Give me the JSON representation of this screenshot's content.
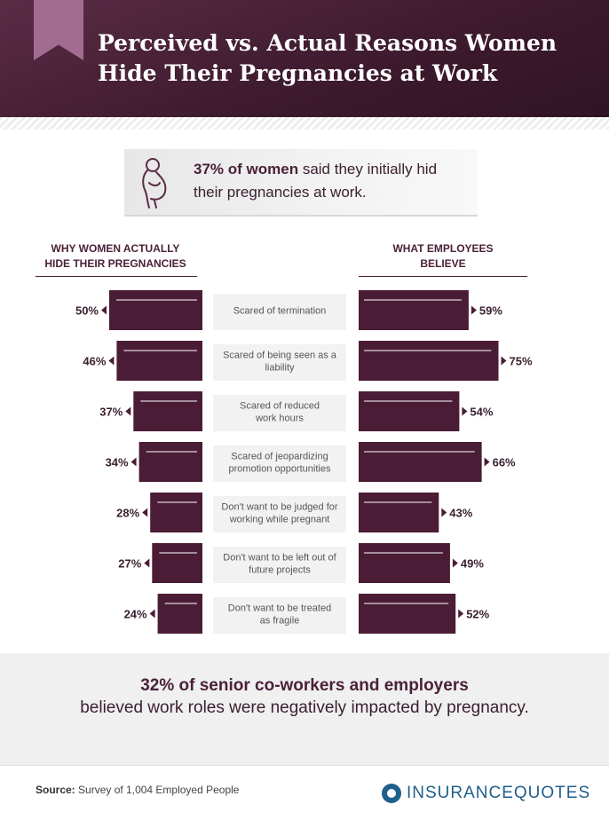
{
  "header": {
    "title_line1": "Perceived vs. Actual Reasons Women",
    "title_line2": "Hide Their Pregnancies at Work"
  },
  "stat": {
    "highlight": "37% of women",
    "text": "said they initially hid their pregnancies at work."
  },
  "chart_data": {
    "type": "bar",
    "left_header": [
      "WHY WOMEN ACTUALLY",
      "HIDE THEIR PREGNANCIES"
    ],
    "right_header": [
      "WHAT EMPLOYEES",
      "BELIEVE"
    ],
    "categories": [
      [
        "Scared of termination"
      ],
      [
        "Scared of being seen as a",
        "liability"
      ],
      [
        "Scared of reduced",
        "work hours"
      ],
      [
        "Scared of jeopardizing",
        "promotion opportunities"
      ],
      [
        "Don't want to be judged for",
        "working while pregnant"
      ],
      [
        "Don't want to be left out of",
        "future projects"
      ],
      [
        "Don't want to be treated",
        "as fragile"
      ]
    ],
    "series": [
      {
        "name": "WHY WOMEN ACTUALLY HIDE THEIR PREGNANCIES",
        "values": [
          50,
          46,
          37,
          34,
          28,
          27,
          24
        ]
      },
      {
        "name": "WHAT EMPLOYEES BELIEVE",
        "values": [
          59,
          75,
          54,
          66,
          43,
          49,
          52
        ]
      }
    ],
    "value_suffix": "%",
    "colors": {
      "bar": "#4a1c35",
      "label_bg": "#f2f2f2",
      "text": "#3b2130"
    }
  },
  "bottom": {
    "highlight": "32% of senior co-workers and employers",
    "text": "believed work roles were negatively impacted by pregnancy."
  },
  "footer": {
    "source_label": "Source:",
    "source_text": "Survey of 1,004 Employed People",
    "logo_text": "INSURANCEQUOTES",
    "logo_icon": "insurancequotes-logo-icon"
  }
}
